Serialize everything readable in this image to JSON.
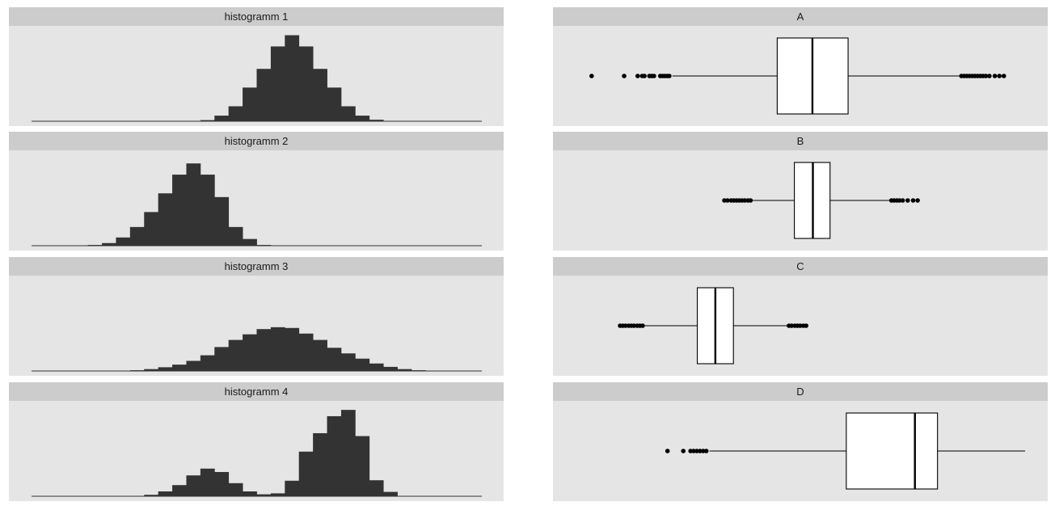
{
  "colors": {
    "panel_bg": "#e5e5e5",
    "strip_bg": "#cccccc",
    "bar_fill": "#333333",
    "box_fill": "#ffffff",
    "line": "#000000"
  },
  "chart_data": [
    {
      "type": "bar",
      "title": "histogramm 1",
      "bins": 32,
      "values": [
        0,
        0,
        0,
        0,
        0,
        0,
        0,
        0,
        0,
        0,
        0,
        0,
        0.3,
        1.5,
        4,
        9,
        14,
        20,
        23,
        20,
        14,
        9,
        4,
        1.5,
        0.4,
        0,
        0,
        0,
        0,
        0,
        0,
        0
      ],
      "ylim": [
        0,
        24
      ]
    },
    {
      "type": "bar",
      "title": "histogramm 2",
      "bins": 32,
      "values": [
        0,
        0,
        0,
        0,
        0.2,
        0.7,
        2.2,
        5,
        9,
        14,
        19,
        22,
        19,
        13,
        5,
        1.8,
        0.2,
        0,
        0,
        0,
        0,
        0,
        0,
        0,
        0,
        0,
        0,
        0,
        0,
        0,
        0,
        0
      ],
      "ylim": [
        0,
        24
      ]
    },
    {
      "type": "bar",
      "title": "histogramm 3",
      "bins": 32,
      "values": [
        0,
        0,
        0,
        0,
        0,
        0,
        0,
        0.2,
        0.5,
        1,
        1.7,
        2.7,
        4.2,
        6.4,
        8.3,
        9.8,
        11.2,
        11.7,
        11.5,
        10,
        8.3,
        6.2,
        4.7,
        3.3,
        2,
        1.1,
        0.5,
        0.2,
        0,
        0,
        0,
        0
      ],
      "ylim": [
        0,
        24
      ]
    },
    {
      "type": "bar",
      "title": "histogramm 4",
      "bins": 32,
      "values": [
        0,
        0,
        0,
        0,
        0,
        0,
        0,
        0,
        0.3,
        1,
        2.3,
        4.3,
        5.7,
        5,
        2.7,
        1,
        0.4,
        0.6,
        3.2,
        9.2,
        13,
        16.5,
        17.8,
        12.4,
        3.3,
        0.9,
        0,
        0,
        0,
        0,
        0,
        0
      ],
      "ylim": [
        0,
        18.5
      ]
    },
    {
      "type": "boxplot",
      "title": "A",
      "xlim": [
        0,
        100
      ],
      "q1": 45.1,
      "median": 52.9,
      "q3": 60.8,
      "whisker_low": 21.9,
      "whisker_high": 85.6,
      "outliers": [
        4,
        11.2,
        14.2,
        15.2,
        15.7,
        16.8,
        17.3,
        17.8,
        19.2,
        19.7,
        20.2,
        20.7,
        21.2,
        85.9,
        86.5,
        87.1,
        87.7,
        88.3,
        88.9,
        89.5,
        90.1,
        90.7,
        91.3,
        92.1,
        93.3,
        94.3,
        95.3
      ]
    },
    {
      "type": "boxplot",
      "title": "B",
      "xlim": [
        0,
        100
      ],
      "q1": 48.9,
      "median": 53.0,
      "q3": 56.8,
      "whisker_low": 39.7,
      "whisker_high": 70.0,
      "outliers": [
        33.4,
        34.1,
        34.9,
        35.5,
        36.1,
        36.7,
        37.3,
        37.9,
        38.6,
        39.2,
        70.4,
        71.0,
        71.6,
        72.2,
        72.9,
        74.0,
        75.2,
        76.2
      ]
    },
    {
      "type": "boxplot",
      "title": "C",
      "xlim": [
        0,
        100
      ],
      "q1": 27.4,
      "median": 31.4,
      "q3": 35.4,
      "whisker_low": 15.8,
      "whisker_high": 47.3,
      "outliers": [
        10.3,
        10.9,
        11.5,
        12.2,
        12.8,
        13.4,
        14.1,
        14.7,
        15.3,
        47.7,
        48.3,
        49.0,
        49.6,
        50.2,
        50.9,
        51.5
      ]
    },
    {
      "type": "boxplot",
      "title": "D",
      "xlim": [
        0,
        100
      ],
      "q1": 60.4,
      "median": 75.6,
      "q3": 80.6,
      "whisker_low": 30.1,
      "whisker_high": 100.0,
      "outliers": [
        20.8,
        24.3,
        25.9,
        26.6,
        27.3,
        28.0,
        28.7,
        29.4
      ]
    }
  ]
}
